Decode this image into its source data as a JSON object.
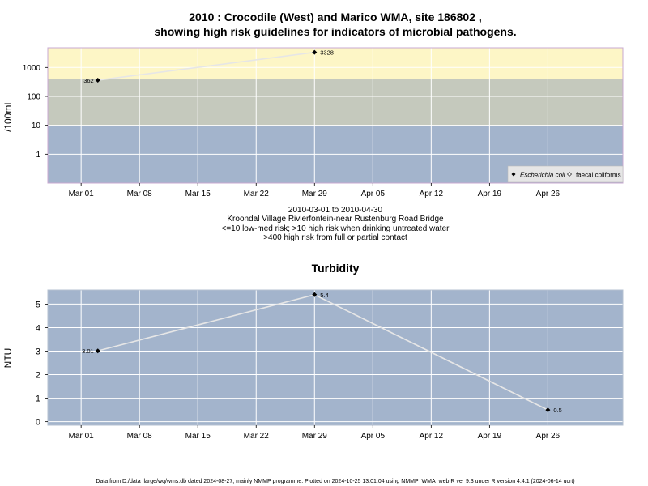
{
  "title": {
    "line1": "2010 : Crocodile (West) and Marico WMA, site 186802 ,",
    "line2": "showing high risk guidelines for indicators of microbial pathogens."
  },
  "caption": {
    "line1": "2010-03-01 to 2010-04-30",
    "line2": "Kroondal Village Rivierfontein-near Rustenburg Road Bridge",
    "line3": "<=10 low-med risk; >10 high risk when drinking untreated water",
    "line4": ">400 high risk from full or partial contact"
  },
  "footer": "Data from D:/data_large/wq/wms.db dated 2024-08-27, mainly NMMP programme. Plotted on 2024-10-25 13:01:04 using NMMP_WMA_web.R ver 9.3 under R version 4.4.1 (2024-06-14 ucrt)",
  "colors": {
    "panel": "#a3b4cc",
    "band_mid": "#c5c9bd",
    "band_high": "#fdf6c6",
    "grid": "#ffffff",
    "line": "#e6e6e6",
    "point": "#000000",
    "plot_border": "#c8a8d0"
  },
  "chart_data": [
    {
      "type": "line",
      "title": "",
      "xlabel": "",
      "ylabel": "/100mL",
      "y_scale": "log10",
      "ylim": [
        0.1,
        4800
      ],
      "yticks": [
        1,
        10,
        100,
        1000
      ],
      "ytick_labels": [
        "1",
        "10",
        "100",
        "1000"
      ],
      "xlim": [
        "2010-02-25",
        "2010-05-05"
      ],
      "xticks": [
        "2010-03-01",
        "2010-03-08",
        "2010-03-15",
        "2010-03-22",
        "2010-03-29",
        "2010-04-05",
        "2010-04-12",
        "2010-04-19",
        "2010-04-26"
      ],
      "xtick_labels": [
        "Mar 01",
        "Mar 08",
        "Mar 15",
        "Mar 22",
        "Mar 29",
        "Apr 05",
        "Apr 12",
        "Apr 19",
        "Apr 26"
      ],
      "grid": true,
      "bands": [
        {
          "from": 0.1,
          "to": 10,
          "color": "#a3b4cc"
        },
        {
          "from": 10,
          "to": 400,
          "color": "#c5c9bd"
        },
        {
          "from": 400,
          "to": 4800,
          "color": "#fdf6c6"
        }
      ],
      "legend": {
        "position": "bottom-right",
        "entries": [
          {
            "name": "Escherichia coli",
            "italic": true,
            "marker": "filled-diamond"
          },
          {
            "name": "faecal coliforms",
            "italic": false,
            "marker": "open-diamond"
          }
        ]
      },
      "series": [
        {
          "name": "Escherichia coli",
          "x": [
            "2010-03-03",
            "2010-03-29"
          ],
          "values": [
            362,
            3328
          ],
          "labels": [
            "362",
            "3328"
          ]
        }
      ]
    },
    {
      "type": "line",
      "title": "Turbidity",
      "xlabel": "",
      "ylabel": "NTU",
      "y_scale": "linear",
      "ylim": [
        -0.15,
        5.6
      ],
      "yticks": [
        0,
        1,
        2,
        3,
        4,
        5
      ],
      "ytick_labels": [
        "0",
        "1",
        "2",
        "3",
        "4",
        "5"
      ],
      "xlim": [
        "2010-02-25",
        "2010-05-05"
      ],
      "xticks": [
        "2010-03-01",
        "2010-03-08",
        "2010-03-15",
        "2010-03-22",
        "2010-03-29",
        "2010-04-05",
        "2010-04-12",
        "2010-04-19",
        "2010-04-26"
      ],
      "xtick_labels": [
        "Mar 01",
        "Mar 08",
        "Mar 15",
        "Mar 22",
        "Mar 29",
        "Apr 05",
        "Apr 12",
        "Apr 19",
        "Apr 26"
      ],
      "grid": true,
      "series": [
        {
          "name": "Turbidity",
          "x": [
            "2010-03-03",
            "2010-03-29",
            "2010-04-26"
          ],
          "values": [
            3.01,
            5.4,
            0.5
          ],
          "labels": [
            "3.01",
            "5.4",
            "0.5"
          ]
        }
      ]
    }
  ]
}
